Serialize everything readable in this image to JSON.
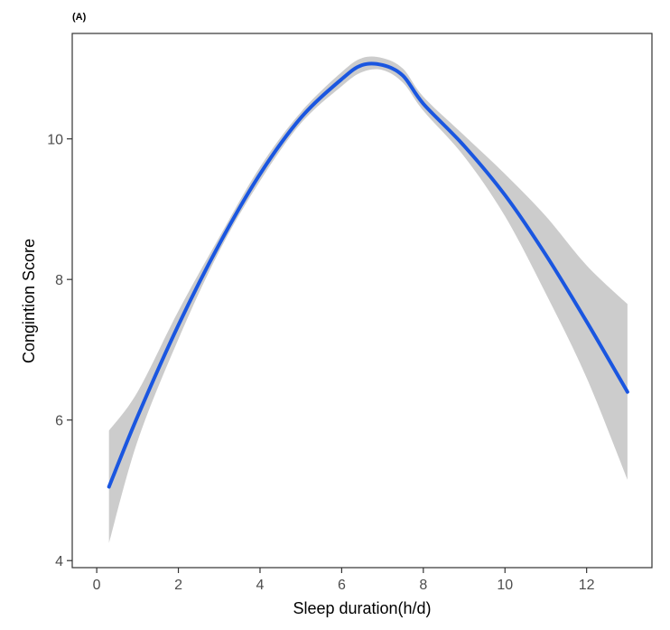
{
  "chart_data": {
    "type": "line",
    "panel_label": "(A)",
    "title": "",
    "xlabel": "Sleep duration(h/d)",
    "ylabel": "Congintion Score",
    "xlim": [
      -0.6,
      13.6
    ],
    "ylim": [
      3.9,
      11.5
    ],
    "x_ticks": [
      0,
      2,
      4,
      6,
      8,
      10,
      12
    ],
    "y_ticks": [
      4,
      6,
      8,
      10
    ],
    "grid": false,
    "legend": "none",
    "series": [
      {
        "color": "#1a56e0",
        "x": [
          0.3,
          1,
          2,
          3,
          4,
          5,
          6,
          6.5,
          7,
          7.5,
          8,
          9,
          10,
          11,
          12,
          13
        ],
        "y": [
          5.05,
          6.05,
          7.35,
          8.5,
          9.5,
          10.3,
          10.85,
          11.05,
          11.05,
          10.9,
          10.5,
          9.9,
          9.2,
          8.35,
          7.4,
          6.4
        ],
        "ci_lower": [
          4.25,
          5.7,
          7.15,
          8.4,
          9.4,
          10.22,
          10.75,
          10.95,
          10.98,
          10.8,
          10.4,
          9.75,
          8.9,
          7.8,
          6.6,
          5.15
        ],
        "ci_upper": [
          5.85,
          6.4,
          7.55,
          8.6,
          9.6,
          10.38,
          10.95,
          11.15,
          11.15,
          11.0,
          10.6,
          10.05,
          9.5,
          8.9,
          8.2,
          7.65
        ]
      }
    ],
    "ci_color": "#cccccc"
  }
}
